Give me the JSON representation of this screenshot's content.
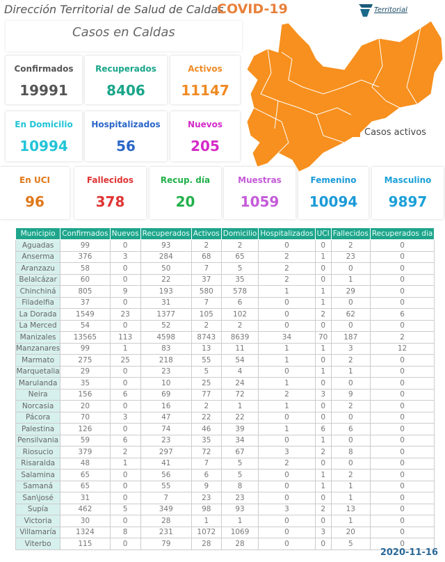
{
  "header": {
    "title": "Dirección Territorial de Salud de Caldas",
    "covid": "COVID-19",
    "logo_text": "Territorial",
    "subtitle": "Casos en Caldas"
  },
  "cards": [
    {
      "label": "Confirmados",
      "value": "19991",
      "color": "#555555"
    },
    {
      "label": "Recuperados",
      "value": "8406",
      "color": "#1aa58a"
    },
    {
      "label": "Activos",
      "value": "11147",
      "color": "#f08a24"
    },
    {
      "label": "En Domicilio",
      "value": "10994",
      "color": "#22c4d8"
    },
    {
      "label": "Hospitalizados",
      "value": "56",
      "color": "#2a66c8"
    },
    {
      "label": "Nuevos",
      "value": "205",
      "color": "#d42ac8"
    },
    {
      "label": "En UCI",
      "value": "96",
      "color": "#e07818"
    },
    {
      "label": "Fallecidos",
      "value": "378",
      "color": "#e03434"
    },
    {
      "label": "Recup. día",
      "value": "20",
      "color": "#22b04a"
    },
    {
      "label": "Muestras",
      "value": "1059",
      "color": "#c45ad8"
    },
    {
      "label": "Femenino",
      "value": "10094",
      "color": "#1a9ad8"
    },
    {
      "label": "Masculino",
      "value": "9897",
      "color": "#1aa0d8"
    }
  ],
  "map": {
    "legend": "Casos activos",
    "fill": "#f7901e"
  },
  "table": {
    "headers": [
      "Municipio",
      "Confirmados",
      "Nuevos",
      "Recuperados",
      "Activos",
      "Domicilio",
      "Hospitalizados",
      "UCI",
      "Fallecidos",
      "Recuperados dia"
    ],
    "rows": [
      [
        "Aguadas",
        "99",
        "0",
        "93",
        "2",
        "2",
        "0",
        "0",
        "2",
        "0"
      ],
      [
        "Anserma",
        "376",
        "3",
        "284",
        "68",
        "65",
        "2",
        "1",
        "23",
        "0"
      ],
      [
        "Aranzazu",
        "58",
        "0",
        "50",
        "7",
        "5",
        "2",
        "0",
        "0",
        "0"
      ],
      [
        "Belalcázar",
        "60",
        "0",
        "22",
        "37",
        "35",
        "2",
        "0",
        "1",
        "0"
      ],
      [
        "Chinchiná",
        "805",
        "9",
        "193",
        "580",
        "578",
        "1",
        "1",
        "29",
        "0"
      ],
      [
        "Filadelfia",
        "37",
        "0",
        "31",
        "7",
        "6",
        "0",
        "1",
        "0",
        "0"
      ],
      [
        "La Dorada",
        "1549",
        "23",
        "1377",
        "105",
        "102",
        "0",
        "2",
        "62",
        "6"
      ],
      [
        "La Merced",
        "54",
        "0",
        "52",
        "2",
        "2",
        "0",
        "0",
        "0",
        "0"
      ],
      [
        "Manizales",
        "13565",
        "113",
        "4598",
        "8743",
        "8639",
        "34",
        "70",
        "187",
        "2"
      ],
      [
        "Manzanares",
        "99",
        "1",
        "83",
        "13",
        "11",
        "1",
        "1",
        "3",
        "12"
      ],
      [
        "Marmato",
        "275",
        "25",
        "218",
        "55",
        "54",
        "1",
        "0",
        "2",
        "0"
      ],
      [
        "Marquetalia",
        "29",
        "0",
        "23",
        "5",
        "4",
        "0",
        "1",
        "1",
        "0"
      ],
      [
        "Marulanda",
        "35",
        "0",
        "10",
        "25",
        "24",
        "1",
        "0",
        "0",
        "0"
      ],
      [
        "Neira",
        "156",
        "6",
        "69",
        "77",
        "72",
        "2",
        "3",
        "9",
        "0"
      ],
      [
        "Norcasia",
        "20",
        "0",
        "16",
        "2",
        "1",
        "1",
        "0",
        "2",
        "0"
      ],
      [
        "Pácora",
        "70",
        "3",
        "47",
        "22",
        "22",
        "0",
        "0",
        "0",
        "0"
      ],
      [
        "Palestina",
        "126",
        "0",
        "74",
        "46",
        "39",
        "1",
        "6",
        "6",
        "0"
      ],
      [
        "Pensilvania",
        "59",
        "6",
        "23",
        "35",
        "34",
        "0",
        "1",
        "0",
        "0"
      ],
      [
        "Riosucio",
        "379",
        "2",
        "297",
        "72",
        "67",
        "3",
        "2",
        "8",
        "0"
      ],
      [
        "Risaralda",
        "48",
        "1",
        "41",
        "7",
        "5",
        "2",
        "0",
        "0",
        "0"
      ],
      [
        "Salamina",
        "65",
        "0",
        "56",
        "6",
        "5",
        "0",
        "1",
        "2",
        "0"
      ],
      [
        "Samaná",
        "65",
        "0",
        "55",
        "9",
        "8",
        "0",
        "1",
        "1",
        "0"
      ],
      [
        "San\\josé",
        "31",
        "0",
        "7",
        "23",
        "23",
        "0",
        "0",
        "1",
        "0"
      ],
      [
        "Supía",
        "462",
        "5",
        "349",
        "98",
        "93",
        "3",
        "2",
        "13",
        "0"
      ],
      [
        "Victoria",
        "30",
        "0",
        "28",
        "1",
        "1",
        "0",
        "0",
        "1",
        "0"
      ],
      [
        "Villamaría",
        "1324",
        "8",
        "231",
        "1072",
        "1069",
        "0",
        "3",
        "20",
        "0"
      ],
      [
        "Viterbo",
        "115",
        "0",
        "79",
        "28",
        "28",
        "0",
        "0",
        "5",
        "0"
      ]
    ]
  },
  "date": "2020-11-16"
}
